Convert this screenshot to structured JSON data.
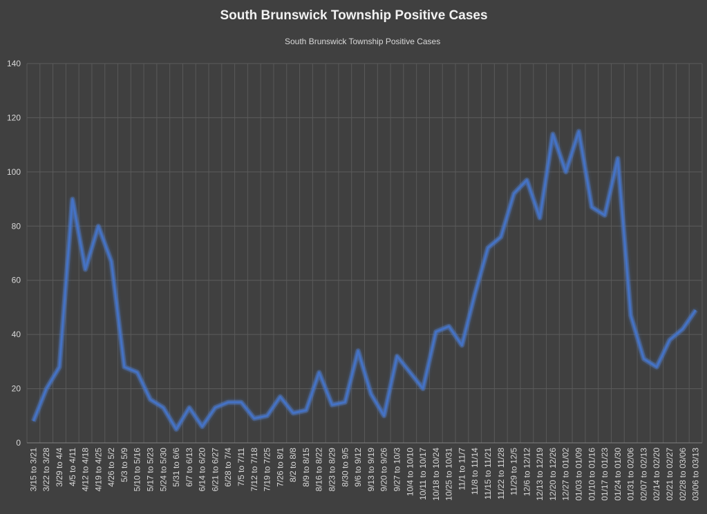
{
  "chart_data": {
    "type": "line",
    "title": "South Brunswick Township Positive Cases",
    "xlabel": "",
    "ylabel": "",
    "ylim": [
      0,
      140
    ],
    "yticks": [
      "0",
      "20",
      "40",
      "60",
      "80",
      "100",
      "120",
      "140"
    ],
    "legend": {
      "position": "top-center",
      "entries": [
        "South Brunswick Township Positive Cases"
      ]
    },
    "grid": true,
    "line_color": "#4472c4",
    "categories": [
      "3/15 to 3/21",
      "3/22 to 3/28",
      "3/29 to 4/4",
      "4/5 to 4/11",
      "4/12 to 4/18",
      "4/19 to 4/25",
      "4/26 to 5/2",
      "5/3 to 5/9",
      "5/10 to 5/16",
      "5/17 to 5/23",
      "5/24 to 5/30",
      "5/31 to 6/6",
      "6/7 to 6/13",
      "6/14 to 6/20",
      "6/21 to 6/27",
      "6/28 to 7/4",
      "7/5 to 7/11",
      "7/12 to 7/18",
      "7/19 to 7/25",
      "7/26 to 8/1",
      "8/2 to 8/8",
      "8/9 to 8/15",
      "8/16 to 8/22",
      "8/23 to 8/29",
      "8/30 to 9/5",
      "9/6 to 9/12",
      "9/13 to 9/19",
      "9/20 to 9/26",
      "9/27 to 10/3",
      "10/4 to 10/10",
      "10/11 to 10/17",
      "10/18 to 10/24",
      "10/25 to 10/31",
      "11/1 to 11/7",
      "11/8 to 11/14",
      "11/15 to 11/21",
      "11/22 to 11/28",
      "11/29 to 12/5",
      "12/6 to 12/12",
      "12/13 to 12/19",
      "12/20 to 12/26",
      "12/27 to 01/02",
      "01/03 to 01/09",
      "01/10 to 01/16",
      "01/17 to 01/23",
      "01/24 to 01/30",
      "01/31 to 02/06",
      "02/07 to 02/13",
      "02/14 to 02/20",
      "02/21 to 02/27",
      "02/28 to 03/06",
      "03/06 to 03/13"
    ],
    "series": [
      {
        "name": "South Brunswick Township Positive Cases",
        "values": [
          8,
          20,
          28,
          90,
          64,
          80,
          67,
          28,
          26,
          16,
          13,
          5,
          13,
          6,
          13,
          15,
          15,
          9,
          10,
          17,
          11,
          12,
          26,
          14,
          15,
          34,
          18,
          10,
          32,
          26,
          20,
          41,
          43,
          36,
          55,
          72,
          76,
          92,
          97,
          83,
          114,
          100,
          115,
          87,
          84,
          105,
          47,
          31,
          28,
          38,
          42,
          49
        ]
      }
    ]
  }
}
